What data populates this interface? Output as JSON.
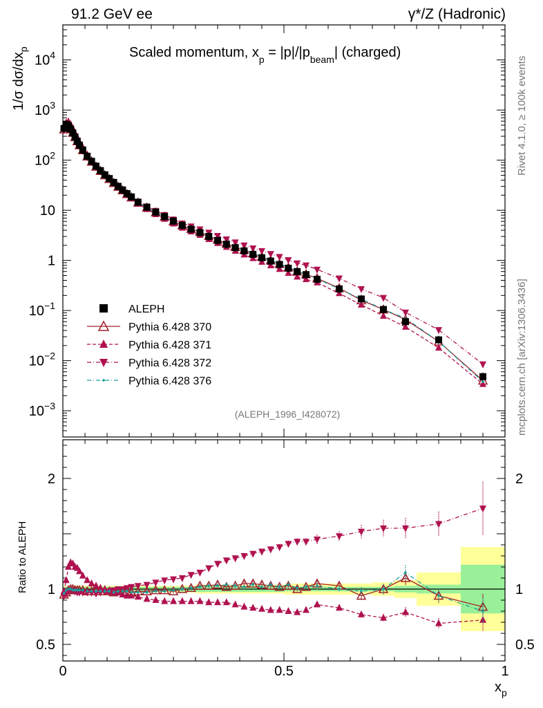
{
  "header": {
    "left": "91.2 GeV ee",
    "right": "γ*/Z (Hadronic)"
  },
  "side_labels": {
    "rivet": "Rivet 4.1.0, ≥ 100k events",
    "mcplots": "mcplots.cern.ch [arXiv:1306.3436]"
  },
  "chart_data": [
    {
      "type": "line",
      "title": "Scaled momentum, x_p = |p|/|p_beam| (charged)",
      "title_parts": {
        "pre": "Scaled momentum, x",
        "sub1": "p",
        "mid": " = |p|/|p",
        "sub2": "beam",
        "post": "| (charged)"
      },
      "analysis_label": "(ALEPH_1996_I428072)",
      "ylabel": "1/σ dσ/dx_p",
      "ylabel_parts": {
        "pre": "1/σ  dσ/dx",
        "sub": "p"
      },
      "xlabel": "x_p",
      "xscale": "linear",
      "yscale": "log",
      "xlim": [
        0,
        1
      ],
      "ylim": [
        0.0003,
        50000
      ],
      "ytick_labels": [
        {
          "v": 0.001,
          "mant": "10",
          "exp": "−3"
        },
        {
          "v": 0.01,
          "mant": "10",
          "exp": "−2"
        },
        {
          "v": 0.1,
          "mant": "10",
          "exp": "−1"
        },
        {
          "v": 1,
          "mant": "1",
          "exp": ""
        },
        {
          "v": 10,
          "mant": "10",
          "exp": ""
        },
        {
          "v": 100,
          "mant": "10",
          "exp": "2"
        },
        {
          "v": 1000,
          "mant": "10",
          "exp": "3"
        },
        {
          "v": 10000,
          "mant": "10",
          "exp": "4"
        }
      ],
      "legend": [
        "ALEPH",
        "Pythia 6.428 370",
        "Pythia 6.428 371",
        "Pythia 6.428 372",
        "Pythia 6.428 376"
      ],
      "x": [
        0.0025,
        0.0075,
        0.0125,
        0.0175,
        0.0225,
        0.0275,
        0.0325,
        0.0375,
        0.045,
        0.055,
        0.065,
        0.075,
        0.085,
        0.095,
        0.105,
        0.115,
        0.125,
        0.135,
        0.145,
        0.155,
        0.17,
        0.19,
        0.21,
        0.23,
        0.25,
        0.27,
        0.29,
        0.31,
        0.33,
        0.35,
        0.37,
        0.39,
        0.41,
        0.43,
        0.45,
        0.47,
        0.49,
        0.51,
        0.53,
        0.55,
        0.575,
        0.625,
        0.675,
        0.725,
        0.775,
        0.85,
        0.95
      ],
      "series": [
        {
          "name": "ALEPH",
          "values": [
            430,
            520,
            490,
            420,
            350,
            290,
            240,
            200,
            160,
            120,
            95,
            76,
            62,
            51,
            43,
            36,
            30,
            25.5,
            21.5,
            18.5,
            14.5,
            11.5,
            9.2,
            7.5,
            6.1,
            5.0,
            4.2,
            3.6,
            3.0,
            2.5,
            2.1,
            1.8,
            1.55,
            1.32,
            1.13,
            0.97,
            0.83,
            0.7,
            0.6,
            0.52,
            0.42,
            0.27,
            0.17,
            0.105,
            0.06,
            0.026,
            0.0048
          ]
        },
        {
          "name": "Pythia 6.428 370",
          "values": [
            410,
            505,
            485,
            418,
            352,
            288,
            238,
            198,
            158,
            118,
            93,
            74,
            61,
            50,
            42,
            35,
            29.5,
            25,
            21,
            18,
            14.2,
            11.3,
            9.1,
            7.4,
            6.0,
            5.0,
            4.25,
            3.7,
            3.1,
            2.6,
            2.15,
            1.85,
            1.62,
            1.38,
            1.18,
            1.0,
            0.85,
            0.72,
            0.6,
            0.53,
            0.44,
            0.28,
            0.16,
            0.105,
            0.066,
            0.024,
            0.004
          ]
        },
        {
          "name": "Pythia 6.428 371",
          "values": [
            420,
            560,
            590,
            520,
            430,
            350,
            285,
            232,
            180,
            130,
            100,
            78,
            63,
            51,
            42,
            35,
            29,
            24.2,
            20.2,
            17.3,
            13.5,
            10.5,
            8.3,
            6.7,
            5.4,
            4.45,
            3.75,
            3.2,
            2.65,
            2.2,
            1.84,
            1.54,
            1.3,
            1.1,
            0.93,
            0.79,
            0.67,
            0.56,
            0.47,
            0.42,
            0.36,
            0.22,
            0.13,
            0.078,
            0.047,
            0.018,
            0.0034
          ]
        },
        {
          "name": "Pythia 6.428 372",
          "values": [
            405,
            500,
            480,
            415,
            345,
            282,
            232,
            195,
            155,
            116,
            92,
            73,
            60,
            50,
            42,
            35.5,
            30,
            25.5,
            21.8,
            18.8,
            15,
            12,
            9.8,
            8.1,
            6.6,
            5.5,
            4.8,
            4.2,
            3.6,
            3.1,
            2.65,
            2.3,
            2.0,
            1.75,
            1.55,
            1.35,
            1.18,
            1.02,
            0.88,
            0.8,
            0.66,
            0.44,
            0.27,
            0.18,
            0.092,
            0.041,
            0.0085
          ]
        },
        {
          "name": "Pythia 6.428 376",
          "values": [
            415,
            515,
            490,
            418,
            348,
            287,
            237,
            197,
            158,
            118,
            93,
            74,
            61,
            50,
            42,
            35,
            29.5,
            25,
            21,
            18,
            14.1,
            11.2,
            9.0,
            7.3,
            6.0,
            5.0,
            4.3,
            3.7,
            3.1,
            2.6,
            2.2,
            1.85,
            1.58,
            1.38,
            1.15,
            1.0,
            0.85,
            0.73,
            0.61,
            0.53,
            0.43,
            0.27,
            0.17,
            0.105,
            0.07,
            0.024,
            0.0038
          ]
        }
      ]
    },
    {
      "type": "line",
      "ylabel": "Ratio to ALEPH",
      "xlabel": "x_p",
      "xlabel_parts": {
        "pre": "x",
        "sub": "p"
      },
      "ylim": [
        0.35,
        2.35
      ],
      "ytick_labels": [
        {
          "v": 0.5,
          "label": "0.5"
        },
        {
          "v": 1,
          "label": "1"
        },
        {
          "v": 2,
          "label": "2"
        }
      ],
      "xtick_labels": [
        {
          "v": 0,
          "label": "0"
        },
        {
          "v": 0.5,
          "label": "0.5"
        },
        {
          "v": 1,
          "label": "1"
        }
      ],
      "bands": [
        {
          "x0": 0.0,
          "x1": 0.1,
          "stat": 0.02,
          "total": 0.03
        },
        {
          "x0": 0.1,
          "x1": 0.3,
          "stat": 0.02,
          "total": 0.03
        },
        {
          "x0": 0.3,
          "x1": 0.5,
          "stat": 0.025,
          "total": 0.04
        },
        {
          "x0": 0.5,
          "x1": 0.7,
          "stat": 0.02,
          "total": 0.05
        },
        {
          "x0": 0.7,
          "x1": 0.75,
          "stat": 0.02,
          "total": 0.06
        },
        {
          "x0": 0.75,
          "x1": 0.8,
          "stat": 0.03,
          "total": 0.08
        },
        {
          "x0": 0.8,
          "x1": 0.9,
          "stat": 0.04,
          "total": 0.15
        },
        {
          "x0": 0.9,
          "x1": 1.0,
          "stat": 0.22,
          "total": 0.38
        }
      ],
      "series": [
        {
          "name": "Pythia 6.428 370",
          "values": [
            0.95,
            0.97,
            0.99,
            1.0,
            1.0,
            0.99,
            0.99,
            0.99,
            0.99,
            0.98,
            0.98,
            0.98,
            0.98,
            0.98,
            0.98,
            0.97,
            0.98,
            0.98,
            0.98,
            0.97,
            0.98,
            0.98,
            0.99,
            0.99,
            0.98,
            1.0,
            1.01,
            1.03,
            1.03,
            1.04,
            1.02,
            1.03,
            1.05,
            1.05,
            1.04,
            1.03,
            1.02,
            1.03,
            1.0,
            1.02,
            1.05,
            1.03,
            0.94,
            1.0,
            1.1,
            0.94,
            0.84
          ]
        },
        {
          "name": "Pythia 6.428 371",
          "values": [
            0.98,
            1.08,
            1.2,
            1.24,
            1.23,
            1.2,
            1.19,
            1.16,
            1.12,
            1.08,
            1.05,
            1.03,
            1.01,
            1.0,
            0.98,
            0.97,
            0.97,
            0.95,
            0.94,
            0.94,
            0.93,
            0.91,
            0.9,
            0.89,
            0.89,
            0.89,
            0.89,
            0.89,
            0.88,
            0.88,
            0.88,
            0.86,
            0.84,
            0.83,
            0.82,
            0.81,
            0.81,
            0.8,
            0.79,
            0.81,
            0.86,
            0.83,
            0.77,
            0.74,
            0.79,
            0.69,
            0.72
          ]
        },
        {
          "name": "Pythia 6.428 372",
          "values": [
            0.94,
            0.96,
            0.98,
            0.99,
            0.99,
            0.98,
            0.97,
            0.97,
            0.97,
            0.97,
            0.97,
            0.96,
            0.97,
            0.98,
            0.98,
            0.99,
            1.0,
            1.0,
            1.01,
            1.02,
            1.03,
            1.04,
            1.06,
            1.08,
            1.09,
            1.1,
            1.13,
            1.15,
            1.19,
            1.23,
            1.26,
            1.28,
            1.3,
            1.32,
            1.34,
            1.36,
            1.38,
            1.41,
            1.43,
            1.43,
            1.45,
            1.48,
            1.52,
            1.55,
            1.55,
            1.59,
            1.73
          ]
        },
        {
          "name": "Pythia 6.428 376",
          "values": [
            0.96,
            0.99,
            1.0,
            1.0,
            0.99,
            0.99,
            0.99,
            0.99,
            0.99,
            0.98,
            0.98,
            0.98,
            0.98,
            0.98,
            0.98,
            0.97,
            0.98,
            0.98,
            0.98,
            0.97,
            0.97,
            0.97,
            0.98,
            0.98,
            0.99,
            1.0,
            1.01,
            1.02,
            1.03,
            1.03,
            1.04,
            1.03,
            1.02,
            1.04,
            1.02,
            1.04,
            1.02,
            1.04,
            1.01,
            1.02,
            1.03,
            1.0,
            0.98,
            1.0,
            1.15,
            0.94,
            0.8
          ]
        }
      ],
      "error_frac": [
        0.02,
        0.02,
        0.02,
        0.02,
        0.02,
        0.02,
        0.02,
        0.02,
        0.02,
        0.02,
        0.02,
        0.02,
        0.02,
        0.02,
        0.02,
        0.02,
        0.02,
        0.02,
        0.02,
        0.02,
        0.02,
        0.02,
        0.02,
        0.02,
        0.02,
        0.02,
        0.02,
        0.02,
        0.02,
        0.02,
        0.02,
        0.02,
        0.02,
        0.02,
        0.02,
        0.02,
        0.02,
        0.02,
        0.02,
        0.02,
        0.03,
        0.03,
        0.04,
        0.05,
        0.06,
        0.07,
        0.14
      ]
    }
  ],
  "colors": {
    "aleph": "#000000",
    "p370": "#a0212a",
    "p371": "#b0124f",
    "p372": "#b0124f",
    "p376": "#1a9e9a",
    "band_stat": "#99f099",
    "band_total": "#ffff99"
  }
}
